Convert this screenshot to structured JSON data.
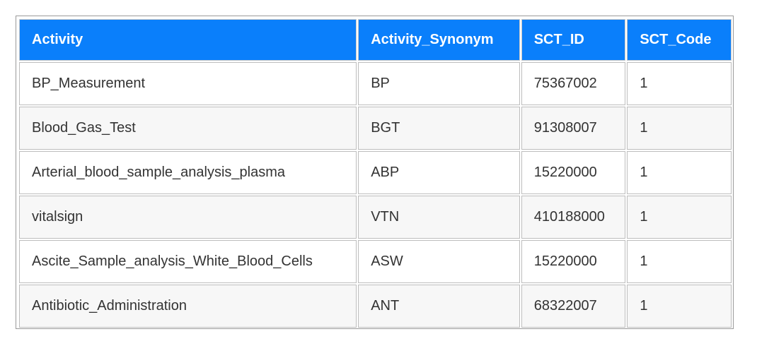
{
  "table": {
    "headers": [
      "Activity",
      "Activity_Synonym",
      "SCT_ID",
      "SCT_Code"
    ],
    "rows": [
      [
        "BP_Measurement",
        "BP",
        "75367002",
        "1"
      ],
      [
        "Blood_Gas_Test",
        "BGT",
        "91308007",
        "1"
      ],
      [
        "Arterial_blood_sample_analysis_plasma",
        "ABP",
        "15220000",
        "1"
      ],
      [
        "vitalsign",
        "VTN",
        "410188000",
        "1"
      ],
      [
        "Ascite_Sample_analysis_White_Blood_Cells",
        "ASW",
        "15220000",
        "1"
      ],
      [
        "Antibiotic_Administration",
        "ANT",
        "68322007",
        "1"
      ]
    ]
  },
  "colors": {
    "header_bg": "#0a7ffb",
    "header_text": "#ffffff",
    "row_alt_bg": "#f7f7f7"
  }
}
